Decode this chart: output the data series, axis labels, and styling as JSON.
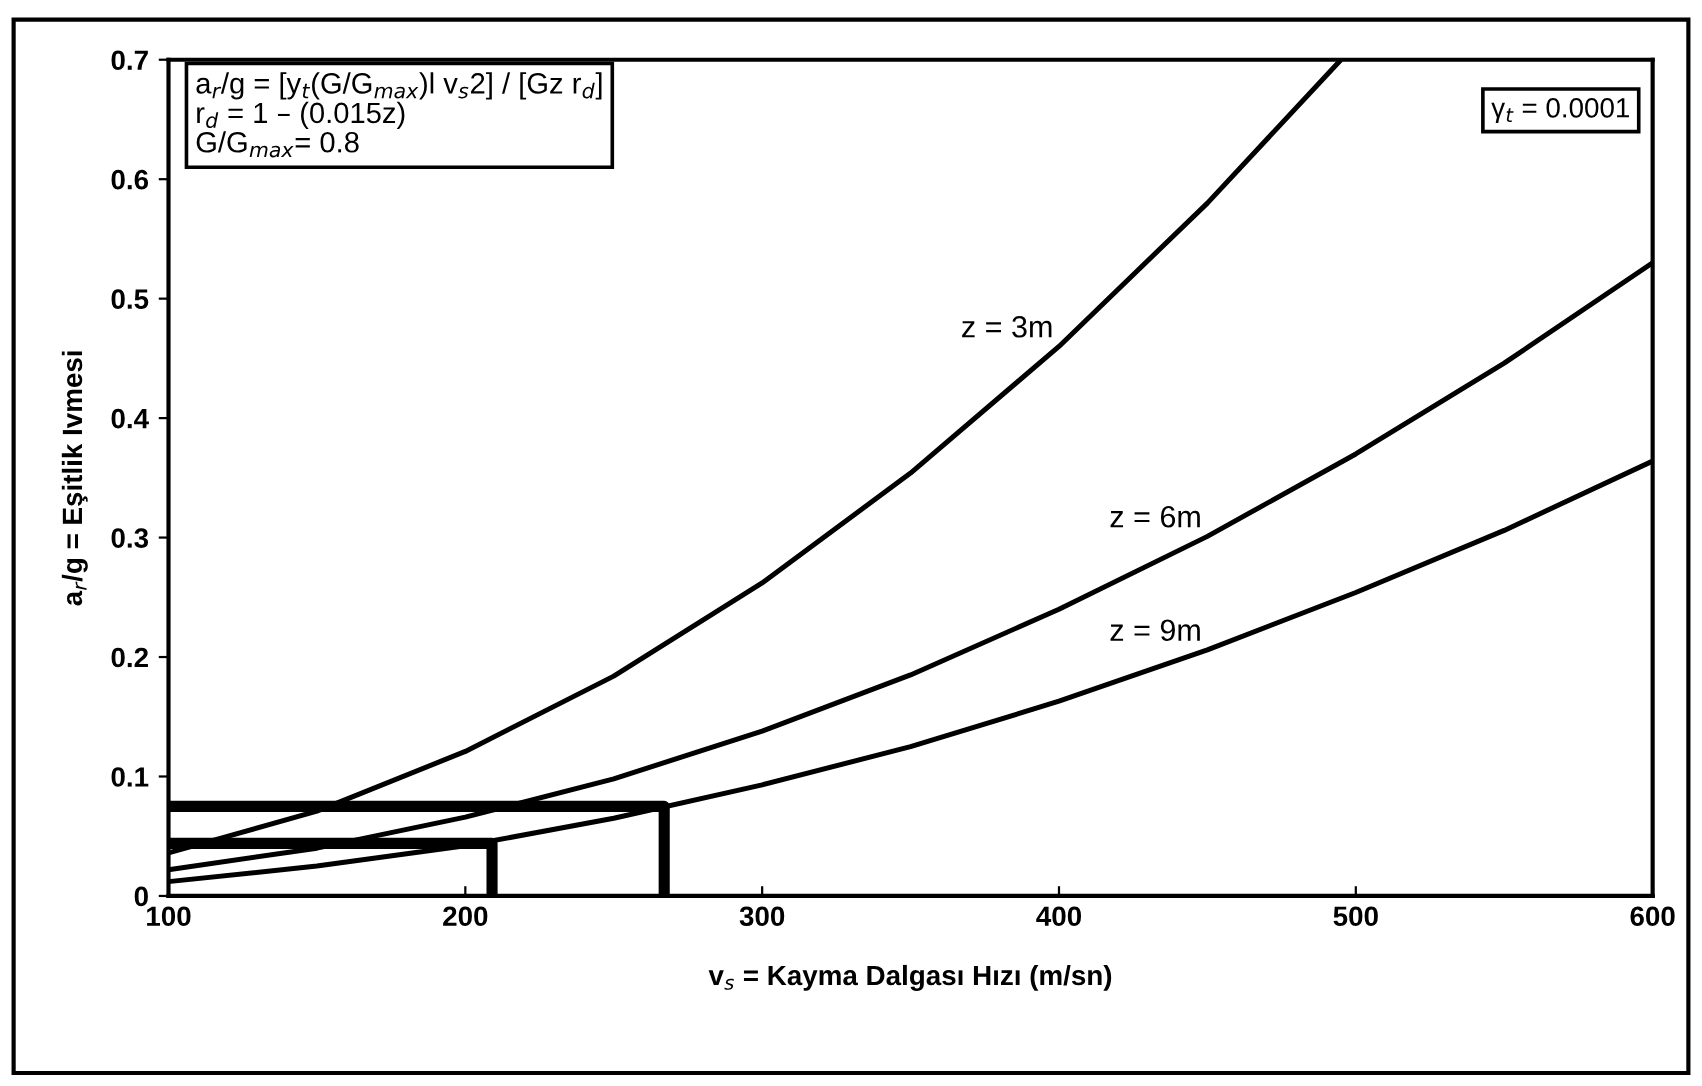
{
  "chart_data": {
    "type": "line",
    "xlabel": "v$_{s}$ = Kayma Dalgası Hızı (m/sn)",
    "ylabel": "a$_{r}$/g = Eşitlik Ivmesi",
    "xlim": [
      100,
      600
    ],
    "xticks": [
      100,
      200,
      300,
      400,
      500,
      600
    ],
    "ylim": [
      0,
      0.7
    ],
    "yticks": [
      0,
      0.1,
      0.2,
      0.3,
      0.4,
      0.5,
      0.6,
      0.7
    ],
    "grid": false,
    "marker": "none",
    "line_style": "solid",
    "series": [
      {
        "name": "z = 3m",
        "color": "#000000",
        "x": [
          100,
          150,
          200,
          250,
          300,
          350,
          400,
          450,
          495
        ],
        "values": [
          0.036,
          0.071,
          0.121,
          0.184,
          0.262,
          0.354,
          0.46,
          0.58,
          0.7
        ]
      },
      {
        "name": "z = 6m",
        "color": "#000000",
        "x": [
          100,
          150,
          200,
          250,
          300,
          350,
          400,
          450,
          500,
          550,
          600
        ],
        "values": [
          0.022,
          0.04,
          0.066,
          0.098,
          0.138,
          0.185,
          0.24,
          0.301,
          0.37,
          0.446,
          0.53
        ]
      },
      {
        "name": "z = 9m",
        "color": "#000000",
        "x": [
          100,
          150,
          200,
          250,
          300,
          350,
          400,
          450,
          500,
          550,
          600
        ],
        "values": [
          0.012,
          0.025,
          0.042,
          0.065,
          0.093,
          0.125,
          0.163,
          0.206,
          0.254,
          0.306,
          0.364
        ]
      },
      {
        "color": "#000000",
        "x": [
          100,
          267,
          267
        ],
        "values": [
          0.075,
          0.075,
          0
        ]
      },
      {
        "color": "#000000",
        "x": [
          100,
          209,
          209
        ],
        "values": [
          0.044,
          0.044,
          0
        ]
      }
    ],
    "annotations": [
      "a$_{r}$/g = [y$_{t}$(G/G$_{max}$)l v$_{s}$2] / [Gz r$_{d}$]",
      "r$_{d}$ = 1 – (0.015z)",
      "G/G$_{max}$= 0.8",
      "γ$_{t}$ = 0.0001"
    ]
  }
}
